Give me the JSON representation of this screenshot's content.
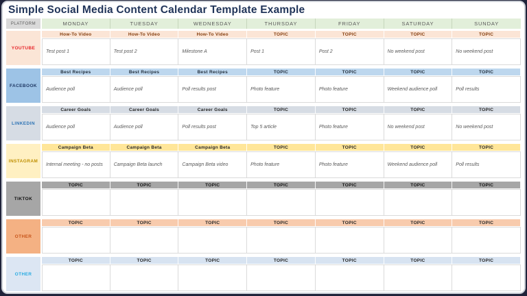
{
  "title": "Simple Social Media Content Calendar Template Example",
  "table": {
    "platform_header": "PLATFORM",
    "days": [
      "MONDAY",
      "TUESDAY",
      "WEDNESDAY",
      "THURSDAY",
      "FRIDAY",
      "SATURDAY",
      "SUNDAY"
    ]
  },
  "colors": {
    "frame": "#20233a",
    "card_border": "#cbcfd6",
    "title_text": "#203459",
    "day_header_bg": "#e2efda",
    "day_header_text": "#595959",
    "platform_header_bg": "#d9d9d9",
    "cell_border": "#dadada",
    "content_text": "#595959"
  },
  "rows": [
    {
      "platform": "YOUTUBE",
      "platform_bg": "#fbe5d6",
      "platform_color": "#e8262a",
      "topic_bg": "#fbe5d6",
      "topic_color": "#843c0c",
      "topics": [
        "How-To Video",
        "How-To Video",
        "How-To Video",
        "TOPIC",
        "TOPIC",
        "TOPIC",
        "TOPIC"
      ],
      "posts": [
        "Test post 1",
        "Test post 2",
        "Milestone A",
        "Post 1",
        "Post 2",
        "No weekend post",
        "No weekend post"
      ]
    },
    {
      "platform": "FACEBOOK",
      "platform_bg": "#9dc3e6",
      "platform_color": "#1f3864",
      "topic_bg": "#bdd7ee",
      "topic_color": "#24313f",
      "topics": [
        "Best Recipes",
        "Best Recipes",
        "Best Recipes",
        "TOPIC",
        "TOPIC",
        "TOPIC",
        "TOPIC"
      ],
      "posts": [
        "Audience poll",
        "Audience poll",
        "Poll results post",
        "Photo feature",
        "Photo feature",
        "Weekend audience poll",
        "Poll results"
      ]
    },
    {
      "platform": "LINKEDIN",
      "platform_bg": "#d6dce4",
      "platform_color": "#2e74b5",
      "topic_bg": "#d6dce4",
      "topic_color": "#262626",
      "topics": [
        "Career Goals",
        "Career Goals",
        "Career Goals",
        "TOPIC",
        "TOPIC",
        "TOPIC",
        "TOPIC"
      ],
      "posts": [
        "Audience poll",
        "Audience poll",
        "Poll results post",
        "Top 5 article",
        "Photo feature",
        "No weekend post",
        "No weekend post"
      ]
    },
    {
      "platform": "INSTAGRAM",
      "platform_bg": "#fff0c2",
      "platform_color": "#bf8f00",
      "topic_bg": "#ffe699",
      "topic_color": "#262626",
      "topics": [
        "Campaign Beta",
        "Campaign Beta",
        "Campaign Beta",
        "TOPIC",
        "TOPIC",
        "TOPIC",
        "TOPIC"
      ],
      "posts": [
        "Internal meeting - no posts",
        "Campaign Beta launch",
        "Campaign Beta video",
        "Photo feature",
        "Photo feature",
        "Weekend audience poll",
        "Poll results"
      ]
    },
    {
      "platform": "TIKTOK",
      "platform_bg": "#a6a6a6",
      "platform_color": "#111111",
      "topic_bg": "#a6a6a6",
      "topic_color": "#111111",
      "topics": [
        "TOPIC",
        "TOPIC",
        "TOPIC",
        "TOPIC",
        "TOPIC",
        "TOPIC",
        "TOPIC"
      ],
      "posts": [
        "",
        "",
        "",
        "",
        "",
        "",
        ""
      ]
    },
    {
      "platform": "OTHER",
      "platform_bg": "#f4b183",
      "platform_color": "#c8551b",
      "topic_bg": "#f8cbad",
      "topic_color": "#262626",
      "topics": [
        "TOPIC",
        "TOPIC",
        "TOPIC",
        "TOPIC",
        "TOPIC",
        "TOPIC",
        "TOPIC"
      ],
      "posts": [
        "",
        "",
        "",
        "",
        "",
        "",
        ""
      ]
    },
    {
      "platform": "OTHER",
      "platform_bg": "#dce6f3",
      "platform_color": "#29abe2",
      "topic_bg": "#d7e3f1",
      "topic_color": "#262626",
      "topics": [
        "TOPIC",
        "TOPIC",
        "TOPIC",
        "TOPIC",
        "TOPIC",
        "TOPIC",
        "TOPIC"
      ],
      "posts": [
        "",
        "",
        "",
        "",
        "",
        "",
        ""
      ]
    }
  ]
}
